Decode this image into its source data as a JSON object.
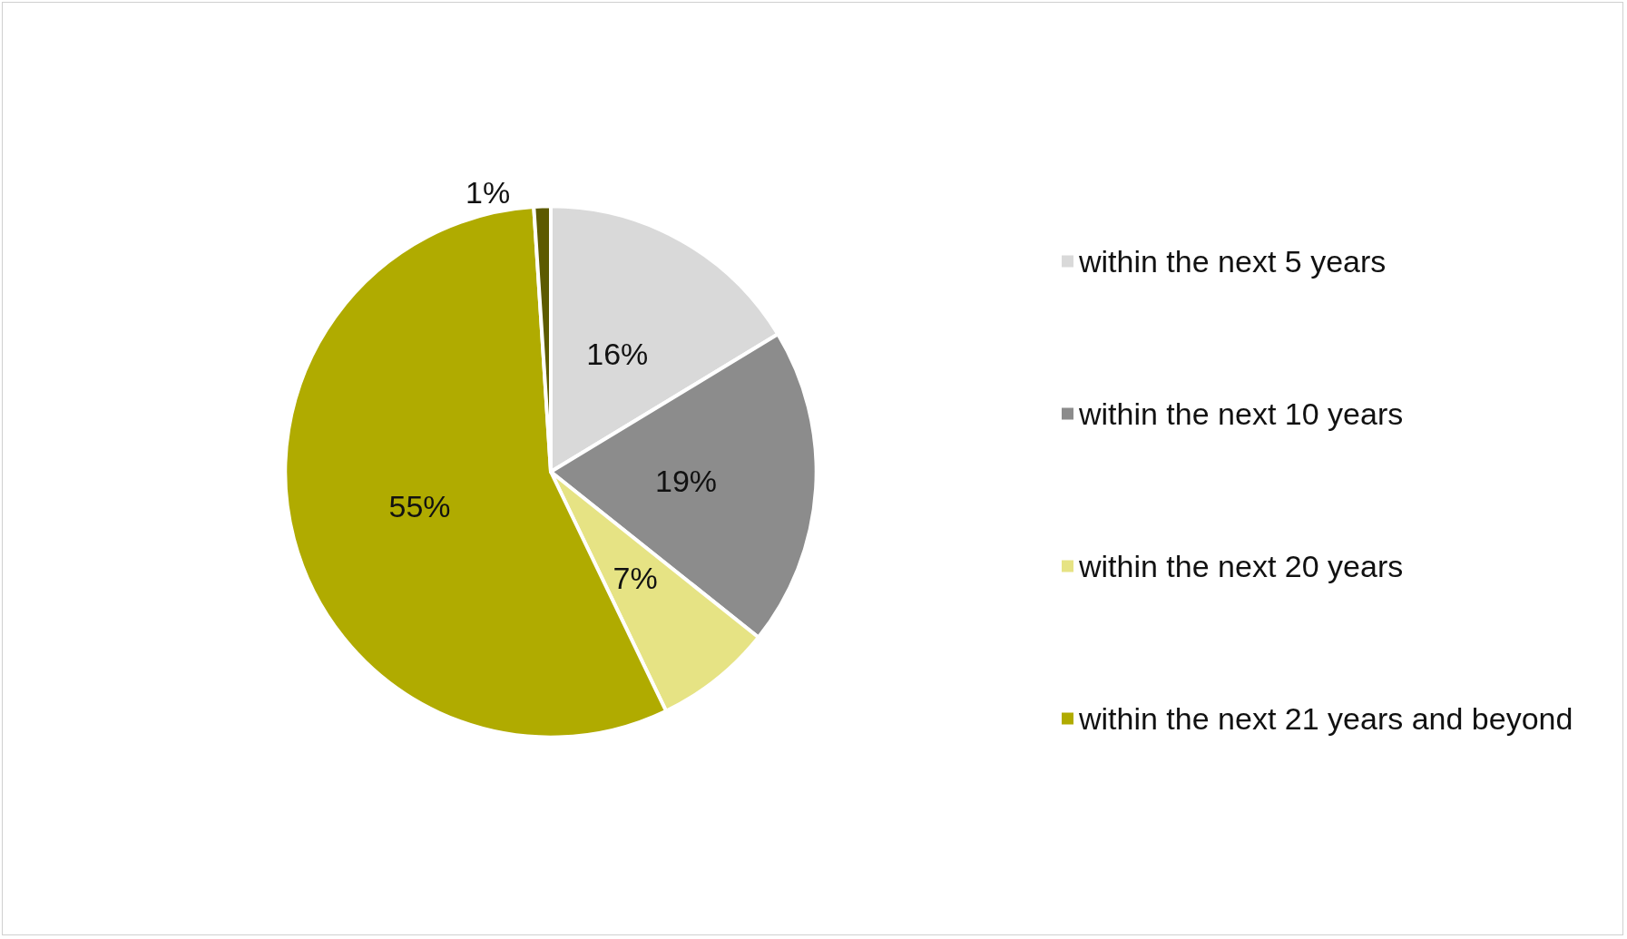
{
  "chart_data": {
    "type": "pie",
    "categories": [
      "within the next 5 years",
      "within the next 10 years",
      "within the next 20 years",
      "within the next 21 years and beyond",
      null
    ],
    "values": [
      16,
      19,
      7,
      55,
      1
    ],
    "value_labels": [
      "16%",
      "19%",
      "7%",
      "55%",
      "1%"
    ],
    "colors": [
      "#d9d9d9",
      "#8c8c8c",
      "#e6e384",
      "#b0ab00",
      "#5c5a00"
    ],
    "legend": "right"
  }
}
